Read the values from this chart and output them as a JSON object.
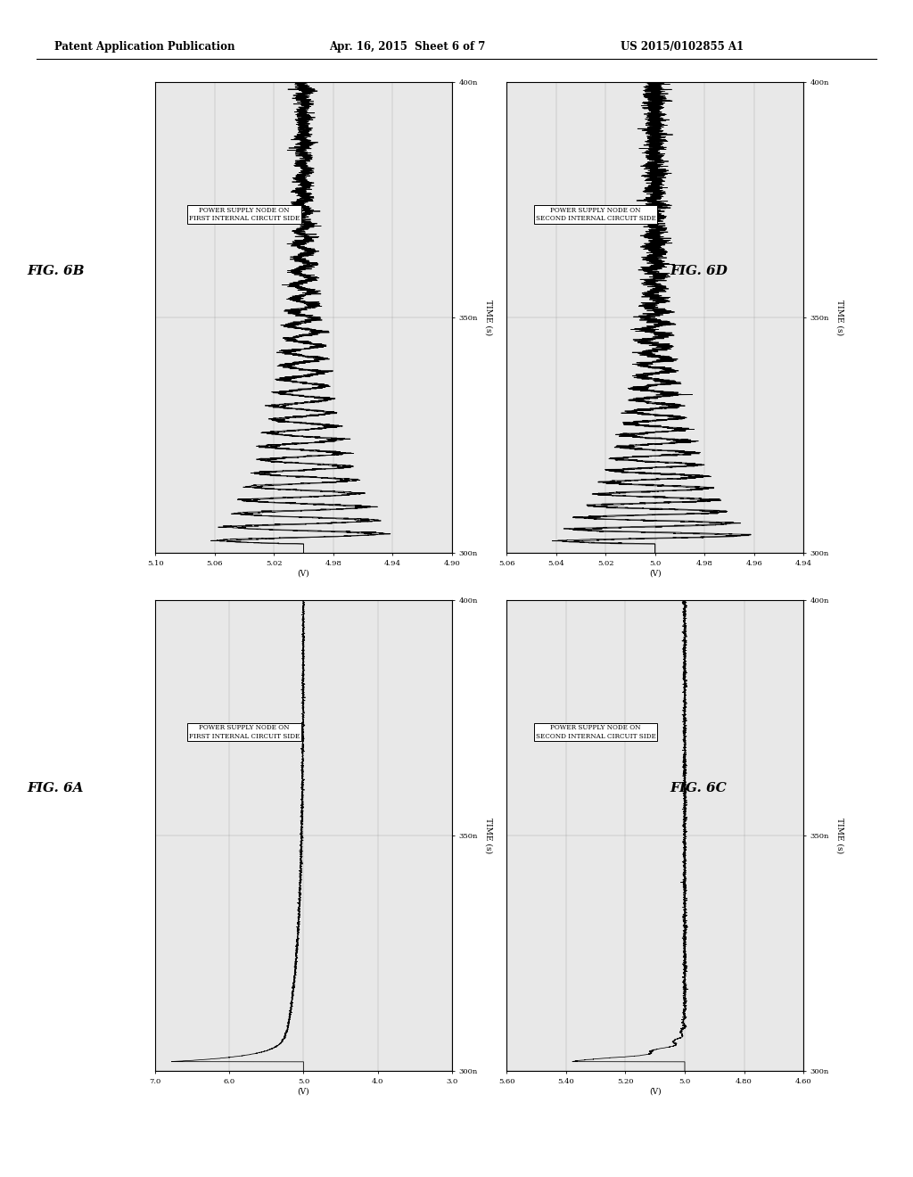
{
  "header_left": "Patent Application Publication",
  "header_mid": "Apr. 16, 2015  Sheet 6 of 7",
  "header_right": "US 2015/0102855 A1",
  "fig_6B_label": "FIG. 6B",
  "fig_6A_label": "FIG. 6A",
  "fig_6D_label": "FIG. 6D",
  "fig_6C_label": "FIG. 6C",
  "ann_first": "POWER SUPPLY NODE ON\nFIRST INTERNAL CIRCUIT SIDE",
  "ann_second": "POWER SUPPLY NODE ON\nSECOND INTERNAL CIRCUIT SIDE",
  "ylabel_v": "(V)",
  "xlabel_time": "TIME (s)",
  "xticks_6B": [
    5.1,
    5.06,
    5.02,
    4.98,
    4.94,
    4.9
  ],
  "xlim_6B": [
    5.1,
    4.9
  ],
  "xticks_6A": [
    7.0,
    6.0,
    5.0,
    4.0,
    3.0
  ],
  "xlim_6A": [
    7.0,
    3.0
  ],
  "xticks_6D": [
    5.06,
    5.04,
    5.02,
    5.0,
    4.98,
    4.96,
    4.94
  ],
  "xlim_6D": [
    5.06,
    4.94
  ],
  "xticks_6C": [
    5.6,
    5.4,
    5.2,
    5.0,
    4.8,
    4.6
  ],
  "xlim_6C": [
    5.6,
    4.6
  ],
  "ytick_labels": [
    "300n",
    "350n",
    "400n"
  ],
  "ytick_vals": [
    300,
    350,
    400
  ],
  "ylim": [
    300,
    400
  ],
  "bg_color": "#ffffff",
  "plot_bg": "#e8e8e8",
  "line_color": "#000000",
  "grid_color": "#999999"
}
